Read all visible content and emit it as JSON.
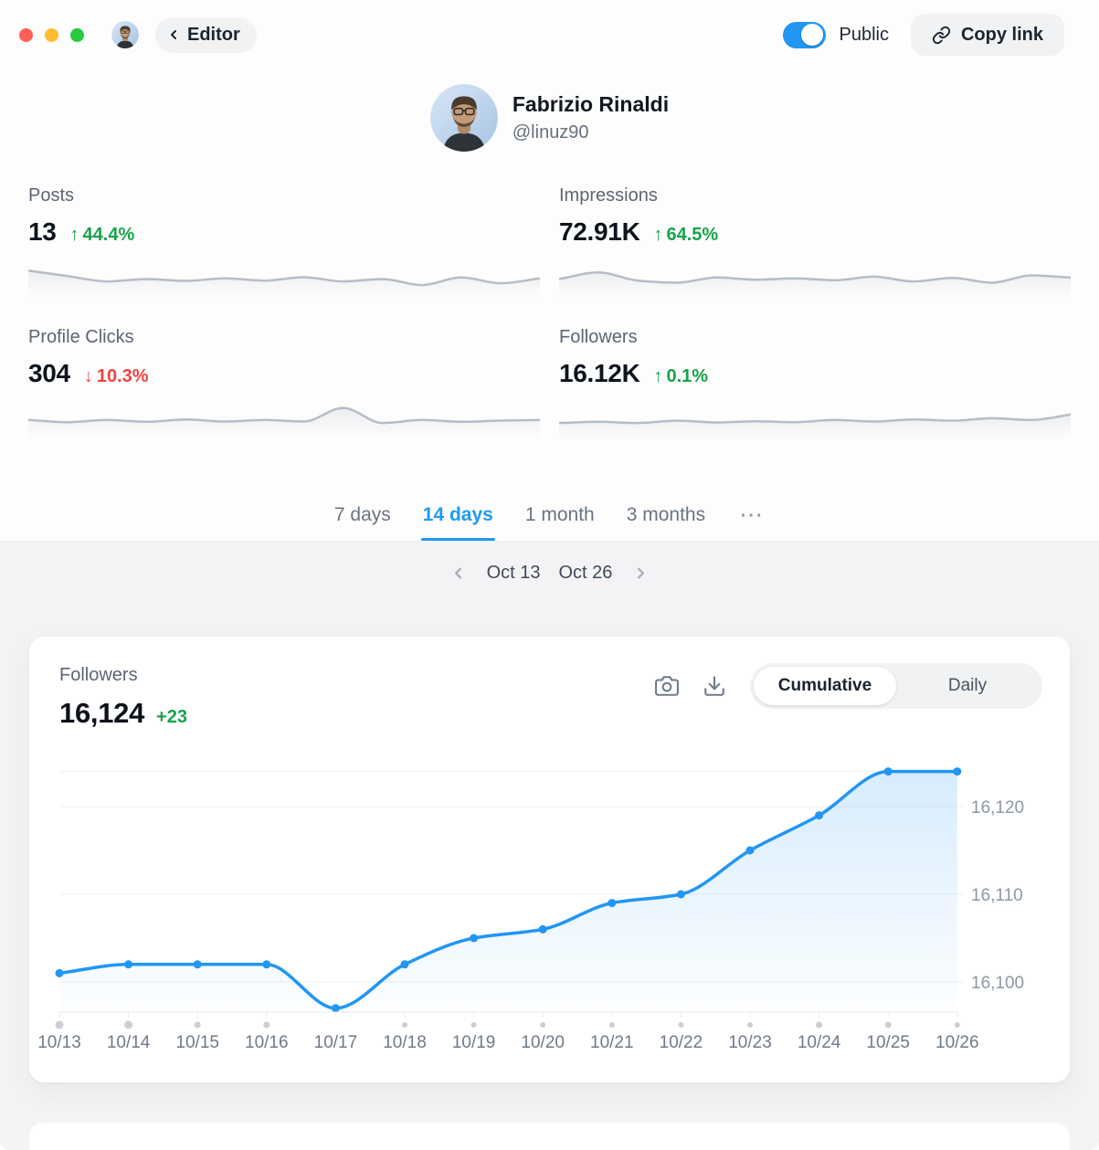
{
  "topbar": {
    "editor_button": "Editor",
    "public_label": "Public",
    "copy_link_label": "Copy link",
    "toggle_state": "on"
  },
  "profile": {
    "name": "Fabrizio Rinaldi",
    "handle": "@linuz90"
  },
  "stats": [
    {
      "label": "Posts",
      "value": "13",
      "arrow": "↑",
      "change": "44.4%",
      "direction": "up",
      "spark": [
        0.78,
        0.6,
        0.42,
        0.5,
        0.44,
        0.52,
        0.45,
        0.56,
        0.42,
        0.5,
        0.3,
        0.55,
        0.36,
        0.52
      ]
    },
    {
      "label": "Impressions",
      "value": "72.91K",
      "arrow": "↑",
      "change": "64.5%",
      "direction": "up",
      "spark": [
        0.5,
        0.72,
        0.45,
        0.38,
        0.55,
        0.48,
        0.52,
        0.46,
        0.58,
        0.42,
        0.54,
        0.38,
        0.62,
        0.55
      ]
    },
    {
      "label": "Profile Clicks",
      "value": "304",
      "arrow": "↓",
      "change": "10.3%",
      "direction": "down",
      "spark": [
        0.52,
        0.45,
        0.52,
        0.46,
        0.54,
        0.47,
        0.52,
        0.47,
        0.92,
        0.42,
        0.52,
        0.46,
        0.5,
        0.52
      ]
    },
    {
      "label": "Followers",
      "value": "16.12K",
      "arrow": "↑",
      "change": "0.1%",
      "direction": "up",
      "spark": [
        0.42,
        0.46,
        0.42,
        0.5,
        0.44,
        0.48,
        0.45,
        0.52,
        0.47,
        0.54,
        0.5,
        0.58,
        0.52,
        0.7
      ]
    }
  ],
  "range_tabs": {
    "items": [
      "7 days",
      "14 days",
      "1 month",
      "3 months"
    ],
    "active": "14 days",
    "more": "⋯"
  },
  "date_nav": {
    "start": "Oct 13",
    "end": "Oct 26"
  },
  "chart_card": {
    "title": "Followers",
    "value": "16,124",
    "change": "+23",
    "view_toggle": {
      "options": [
        "Cumulative",
        "Daily"
      ],
      "selected": "Cumulative"
    }
  },
  "chart_data": {
    "type": "line",
    "title": "Followers (cumulative)",
    "x": [
      "10/13",
      "10/14",
      "10/15",
      "10/16",
      "10/17",
      "10/18",
      "10/19",
      "10/20",
      "10/21",
      "10/22",
      "10/23",
      "10/24",
      "10/25",
      "10/26"
    ],
    "series": [
      {
        "name": "Followers",
        "values": [
          16101,
          16102,
          16102,
          16102,
          16097,
          16102,
          16105,
          16106,
          16109,
          16110,
          16115,
          16119,
          16124,
          16124
        ]
      }
    ],
    "ylim": [
      16095,
      16126
    ],
    "yticks": [
      {
        "v": 16100,
        "label": "16,100"
      },
      {
        "v": 16110,
        "label": "16,110"
      },
      {
        "v": 16120,
        "label": "16,120"
      }
    ],
    "grid": "horizontal",
    "legend": "none",
    "activity_dots": [
      9,
      9,
      7,
      7,
      0,
      6,
      6,
      6,
      6,
      6,
      6,
      7,
      7,
      6
    ]
  },
  "colors": {
    "accent": "#2196f3",
    "tab_active": "#1d9bf0",
    "positive": "#17a34a",
    "negative": "#ee4444",
    "line": "#2196f3",
    "spark": "#b6bdc5",
    "grid": "#edeff2",
    "axis": "#e8ebee",
    "dot": "#c9cfd6",
    "xlabel": "#6f7a87",
    "ylabel": "#8d97a3"
  }
}
